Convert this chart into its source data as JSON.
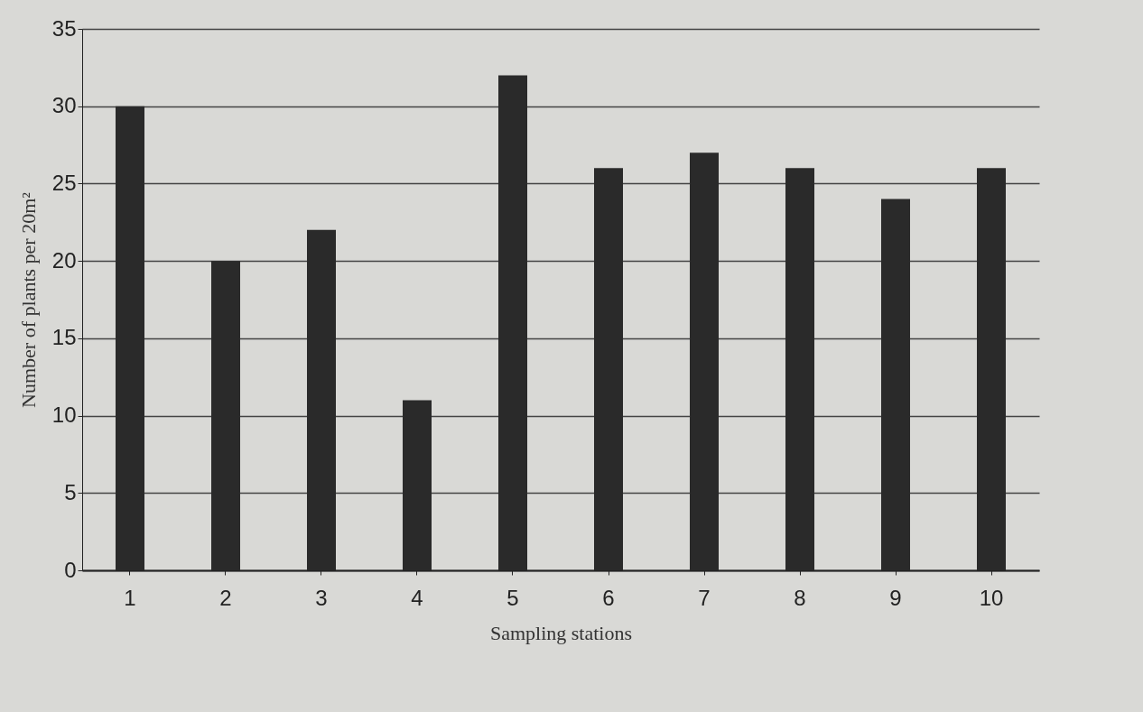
{
  "chart_data": {
    "type": "bar",
    "xlabel": "Sampling stations",
    "ylabel": "Number of plants per 20m²",
    "categories": [
      "1",
      "2",
      "3",
      "4",
      "5",
      "6",
      "7",
      "8",
      "9",
      "10"
    ],
    "values": [
      30,
      20,
      22,
      11,
      32,
      26,
      27,
      26,
      24,
      26
    ],
    "color": "#2a2a2a",
    "ylim": [
      0,
      35
    ],
    "yticks": [
      0,
      5,
      10,
      15,
      20,
      25,
      30,
      35
    ],
    "grid": "y"
  }
}
